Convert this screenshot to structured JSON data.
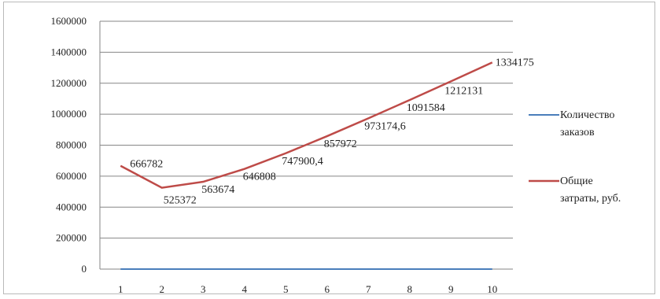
{
  "chart_data": {
    "type": "line",
    "title": "",
    "xlabel": "",
    "ylabel": "",
    "categories": [
      "1",
      "2",
      "3",
      "4",
      "5",
      "6",
      "7",
      "8",
      "9",
      "10"
    ],
    "ylim": [
      0,
      1600000
    ],
    "yticks": [
      "0",
      "200000",
      "400000",
      "600000",
      "800000",
      "1000000",
      "1200000",
      "1400000",
      "1600000"
    ],
    "grid": true,
    "legend_position": "right",
    "series": [
      {
        "name": "Количество заказов",
        "name_lines": [
          "Количество",
          "заказов"
        ],
        "color": "#4a7ebb",
        "values": [
          0,
          0,
          0,
          0,
          0,
          0,
          0,
          0,
          0,
          0
        ],
        "labels": []
      },
      {
        "name": "Общие затраты, руб.",
        "name_lines": [
          "Общие",
          "затраты, руб."
        ],
        "color": "#be4b48",
        "values": [
          666782,
          525372,
          563674,
          646808,
          747900.4,
          857972,
          973174.6,
          1091584,
          1212131,
          1334175
        ],
        "labels": [
          "666782",
          "525372",
          "563674",
          "646808",
          "747900,4",
          "857972",
          "973174,6",
          "1091584",
          "1212131",
          "1334175"
        ]
      }
    ]
  }
}
